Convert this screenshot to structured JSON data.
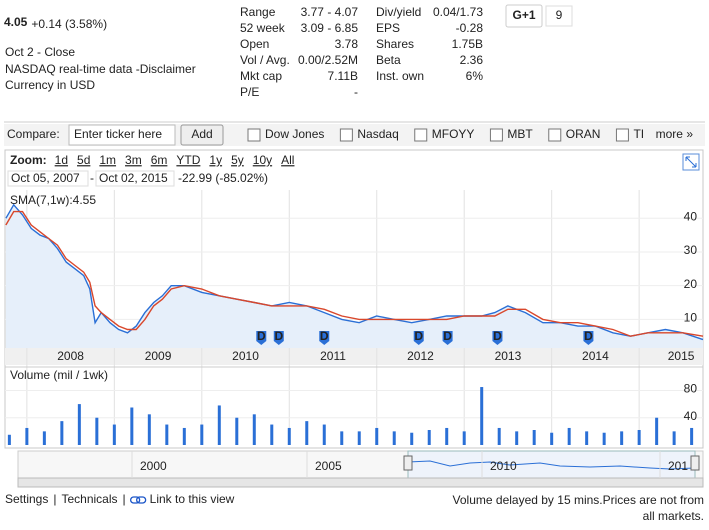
{
  "quote": {
    "price": "4.05",
    "change": "+0.14 (3.58%)",
    "date": "Oct 2 - Close",
    "source": "NASDAQ real-time data - ",
    "disclaimer": "Disclaimer",
    "currency": "Currency in USD"
  },
  "stats": [
    {
      "label": "Range",
      "value": "3.77 - 4.07"
    },
    {
      "label": "52 week",
      "value": "3.09 - 6.85"
    },
    {
      "label": "Open",
      "value": "3.78"
    },
    {
      "label": "Vol / Avg.",
      "value": "0.00/2.52M"
    },
    {
      "label": "Mkt cap",
      "value": "7.11B"
    },
    {
      "label": "P/E",
      "value": "-"
    },
    {
      "label": "Div/yield",
      "value": "0.04/1.73"
    },
    {
      "label": "EPS",
      "value": "-0.28"
    },
    {
      "label": "Shares",
      "value": "1.75B"
    },
    {
      "label": "Beta",
      "value": "2.36"
    },
    {
      "label": "Inst. own",
      "value": "6%"
    }
  ],
  "social": {
    "button": "G+1",
    "count": "9"
  },
  "compare": {
    "label": "Compare:",
    "placeholder": "Enter ticker here",
    "button": "Add",
    "options": [
      "Dow Jones",
      "Nasdaq",
      "MFOYY",
      "MBT",
      "ORAN",
      "TI"
    ],
    "more": "more »"
  },
  "toolbar": {
    "zoom": "Zoom:",
    "ranges": [
      "1d",
      "5d",
      "1m",
      "3m",
      "6m",
      "YTD",
      "1y",
      "5y",
      "10y",
      "All"
    ],
    "from": "Oct 05, 2007",
    "separator": "-",
    "to": "Oct 02, 2015",
    "change": "-22.99 (-85.02%)"
  },
  "chart_data": [
    {
      "type": "line",
      "x": [
        2007.76,
        2007.85,
        2007.95,
        2008.05,
        2008.15,
        2008.25,
        2008.35,
        2008.45,
        2008.55,
        2008.65,
        2008.72,
        2008.78,
        2008.85,
        2008.95,
        2009.05,
        2009.15,
        2009.25,
        2009.35,
        2009.45,
        2009.55,
        2009.65,
        2009.8,
        2010.0,
        2010.2,
        2010.4,
        2010.6,
        2010.8,
        2011.0,
        2011.2,
        2011.4,
        2011.6,
        2011.8,
        2012.0,
        2012.2,
        2012.4,
        2012.6,
        2012.8,
        2013.0,
        2013.2,
        2013.35,
        2013.5,
        2013.7,
        2013.9,
        2014.1,
        2014.3,
        2014.5,
        2014.7,
        2014.9,
        2015.1,
        2015.3,
        2015.5,
        2015.73
      ],
      "series": [
        {
          "color": "#2a6fd6",
          "values": [
            40,
            44,
            41,
            37,
            35,
            34,
            31,
            27,
            25,
            23,
            19,
            9,
            12,
            9,
            7,
            6,
            8,
            12,
            15,
            17,
            20,
            20,
            18,
            17,
            16,
            15,
            14,
            15,
            14,
            12,
            10,
            9,
            11,
            10,
            9,
            10,
            11,
            11,
            11,
            12,
            14,
            12,
            9,
            9,
            8,
            8,
            6,
            5,
            6,
            7,
            6,
            4
          ]
        },
        {
          "name": "SMA(7,1w):4.55",
          "color": "#d9472b",
          "values": [
            38,
            42,
            42,
            38,
            36,
            34,
            32,
            28,
            26,
            24,
            21,
            14,
            12,
            10,
            8,
            7,
            7,
            10,
            14,
            16,
            19,
            20,
            19,
            17,
            16,
            15,
            14,
            14,
            14,
            13,
            11,
            10,
            10,
            10,
            10,
            10,
            10,
            11,
            11,
            11,
            13,
            13,
            10,
            9,
            9,
            8,
            7,
            5,
            6,
            6,
            6,
            5
          ]
        }
      ],
      "annotations": [
        {
          "x": 2010.68,
          "label": "D"
        },
        {
          "x": 2010.88,
          "label": "D"
        },
        {
          "x": 2011.4,
          "label": "D"
        },
        {
          "x": 2012.48,
          "label": "D"
        },
        {
          "x": 2012.81,
          "label": "D"
        },
        {
          "x": 2013.38,
          "label": "D"
        },
        {
          "x": 2014.42,
          "label": "D"
        }
      ],
      "xlim": [
        2007.75,
        2015.73
      ],
      "xticks": [
        2008,
        2009,
        2010,
        2011,
        2012,
        2013,
        2014,
        2015
      ],
      "ylim": [
        1.5,
        48.4
      ],
      "yticks": [
        10,
        20,
        30,
        40
      ],
      "grid": true
    },
    {
      "type": "bar",
      "title": "Volume (mil / 1wk)",
      "color": "#2a6fd6",
      "x": [
        2007.8,
        2008.0,
        2008.2,
        2008.4,
        2008.6,
        2008.8,
        2009.0,
        2009.2,
        2009.4,
        2009.6,
        2009.8,
        2010.0,
        2010.2,
        2010.4,
        2010.6,
        2010.8,
        2011.0,
        2011.2,
        2011.4,
        2011.6,
        2011.8,
        2012.0,
        2012.2,
        2012.4,
        2012.6,
        2012.8,
        2013.0,
        2013.2,
        2013.4,
        2013.6,
        2013.8,
        2014.0,
        2014.2,
        2014.4,
        2014.6,
        2014.8,
        2015.0,
        2015.2,
        2015.4,
        2015.6
      ],
      "values": [
        15,
        25,
        20,
        35,
        60,
        40,
        30,
        55,
        45,
        30,
        25,
        30,
        58,
        40,
        45,
        30,
        25,
        35,
        30,
        20,
        20,
        25,
        20,
        18,
        22,
        25,
        20,
        85,
        25,
        20,
        22,
        18,
        25,
        20,
        18,
        20,
        22,
        40,
        20,
        25
      ],
      "xlim": [
        2007.75,
        2015.73
      ],
      "ylim": [
        0,
        88
      ],
      "yticks": [
        40,
        80
      ]
    }
  ],
  "navigator": {
    "labels": [
      "2000",
      "2005",
      "2010",
      "201"
    ]
  },
  "footer": {
    "links": [
      "Settings",
      "Technicals",
      "Link to this view"
    ],
    "separator": "|",
    "note": [
      "Volume delayed by 15 mins.Prices are not from",
      "all markets."
    ]
  }
}
